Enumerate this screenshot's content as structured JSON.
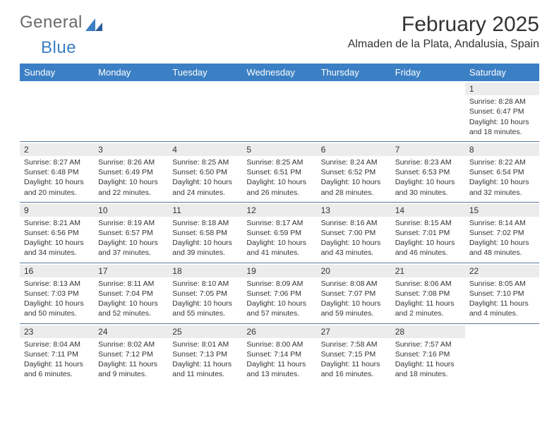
{
  "logo": {
    "text_gray": "General",
    "text_blue": "Blue"
  },
  "header": {
    "month_title": "February 2025",
    "location": "Almaden de la Plata, Andalusia, Spain"
  },
  "colors": {
    "header_bg": "#3b7fc4",
    "header_text": "#ffffff",
    "daynum_bg": "#ececec",
    "week_divider": "#5a7a9a",
    "text": "#333333",
    "logo_gray": "#6a6a6a"
  },
  "weekdays": [
    "Sunday",
    "Monday",
    "Tuesday",
    "Wednesday",
    "Thursday",
    "Friday",
    "Saturday"
  ],
  "weeks": [
    [
      null,
      null,
      null,
      null,
      null,
      null,
      {
        "n": "1",
        "sunrise": "Sunrise: 8:28 AM",
        "sunset": "Sunset: 6:47 PM",
        "daylight": "Daylight: 10 hours and 18 minutes."
      }
    ],
    [
      {
        "n": "2",
        "sunrise": "Sunrise: 8:27 AM",
        "sunset": "Sunset: 6:48 PM",
        "daylight": "Daylight: 10 hours and 20 minutes."
      },
      {
        "n": "3",
        "sunrise": "Sunrise: 8:26 AM",
        "sunset": "Sunset: 6:49 PM",
        "daylight": "Daylight: 10 hours and 22 minutes."
      },
      {
        "n": "4",
        "sunrise": "Sunrise: 8:25 AM",
        "sunset": "Sunset: 6:50 PM",
        "daylight": "Daylight: 10 hours and 24 minutes."
      },
      {
        "n": "5",
        "sunrise": "Sunrise: 8:25 AM",
        "sunset": "Sunset: 6:51 PM",
        "daylight": "Daylight: 10 hours and 26 minutes."
      },
      {
        "n": "6",
        "sunrise": "Sunrise: 8:24 AM",
        "sunset": "Sunset: 6:52 PM",
        "daylight": "Daylight: 10 hours and 28 minutes."
      },
      {
        "n": "7",
        "sunrise": "Sunrise: 8:23 AM",
        "sunset": "Sunset: 6:53 PM",
        "daylight": "Daylight: 10 hours and 30 minutes."
      },
      {
        "n": "8",
        "sunrise": "Sunrise: 8:22 AM",
        "sunset": "Sunset: 6:54 PM",
        "daylight": "Daylight: 10 hours and 32 minutes."
      }
    ],
    [
      {
        "n": "9",
        "sunrise": "Sunrise: 8:21 AM",
        "sunset": "Sunset: 6:56 PM",
        "daylight": "Daylight: 10 hours and 34 minutes."
      },
      {
        "n": "10",
        "sunrise": "Sunrise: 8:19 AM",
        "sunset": "Sunset: 6:57 PM",
        "daylight": "Daylight: 10 hours and 37 minutes."
      },
      {
        "n": "11",
        "sunrise": "Sunrise: 8:18 AM",
        "sunset": "Sunset: 6:58 PM",
        "daylight": "Daylight: 10 hours and 39 minutes."
      },
      {
        "n": "12",
        "sunrise": "Sunrise: 8:17 AM",
        "sunset": "Sunset: 6:59 PM",
        "daylight": "Daylight: 10 hours and 41 minutes."
      },
      {
        "n": "13",
        "sunrise": "Sunrise: 8:16 AM",
        "sunset": "Sunset: 7:00 PM",
        "daylight": "Daylight: 10 hours and 43 minutes."
      },
      {
        "n": "14",
        "sunrise": "Sunrise: 8:15 AM",
        "sunset": "Sunset: 7:01 PM",
        "daylight": "Daylight: 10 hours and 46 minutes."
      },
      {
        "n": "15",
        "sunrise": "Sunrise: 8:14 AM",
        "sunset": "Sunset: 7:02 PM",
        "daylight": "Daylight: 10 hours and 48 minutes."
      }
    ],
    [
      {
        "n": "16",
        "sunrise": "Sunrise: 8:13 AM",
        "sunset": "Sunset: 7:03 PM",
        "daylight": "Daylight: 10 hours and 50 minutes."
      },
      {
        "n": "17",
        "sunrise": "Sunrise: 8:11 AM",
        "sunset": "Sunset: 7:04 PM",
        "daylight": "Daylight: 10 hours and 52 minutes."
      },
      {
        "n": "18",
        "sunrise": "Sunrise: 8:10 AM",
        "sunset": "Sunset: 7:05 PM",
        "daylight": "Daylight: 10 hours and 55 minutes."
      },
      {
        "n": "19",
        "sunrise": "Sunrise: 8:09 AM",
        "sunset": "Sunset: 7:06 PM",
        "daylight": "Daylight: 10 hours and 57 minutes."
      },
      {
        "n": "20",
        "sunrise": "Sunrise: 8:08 AM",
        "sunset": "Sunset: 7:07 PM",
        "daylight": "Daylight: 10 hours and 59 minutes."
      },
      {
        "n": "21",
        "sunrise": "Sunrise: 8:06 AM",
        "sunset": "Sunset: 7:08 PM",
        "daylight": "Daylight: 11 hours and 2 minutes."
      },
      {
        "n": "22",
        "sunrise": "Sunrise: 8:05 AM",
        "sunset": "Sunset: 7:10 PM",
        "daylight": "Daylight: 11 hours and 4 minutes."
      }
    ],
    [
      {
        "n": "23",
        "sunrise": "Sunrise: 8:04 AM",
        "sunset": "Sunset: 7:11 PM",
        "daylight": "Daylight: 11 hours and 6 minutes."
      },
      {
        "n": "24",
        "sunrise": "Sunrise: 8:02 AM",
        "sunset": "Sunset: 7:12 PM",
        "daylight": "Daylight: 11 hours and 9 minutes."
      },
      {
        "n": "25",
        "sunrise": "Sunrise: 8:01 AM",
        "sunset": "Sunset: 7:13 PM",
        "daylight": "Daylight: 11 hours and 11 minutes."
      },
      {
        "n": "26",
        "sunrise": "Sunrise: 8:00 AM",
        "sunset": "Sunset: 7:14 PM",
        "daylight": "Daylight: 11 hours and 13 minutes."
      },
      {
        "n": "27",
        "sunrise": "Sunrise: 7:58 AM",
        "sunset": "Sunset: 7:15 PM",
        "daylight": "Daylight: 11 hours and 16 minutes."
      },
      {
        "n": "28",
        "sunrise": "Sunrise: 7:57 AM",
        "sunset": "Sunset: 7:16 PM",
        "daylight": "Daylight: 11 hours and 18 minutes."
      },
      null
    ]
  ]
}
